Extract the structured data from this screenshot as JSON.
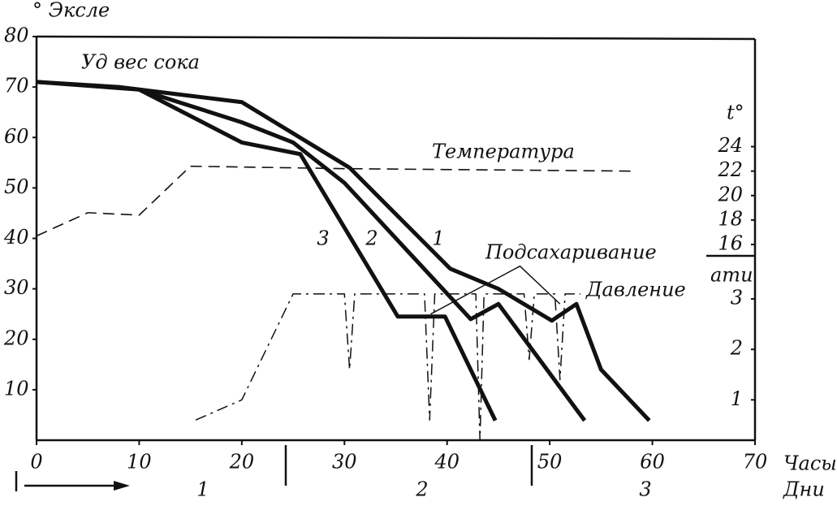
{
  "chart_data": {
    "type": "line",
    "y_axis_label": "° Эксле",
    "y2_axis_label": "t°",
    "y3_axis_label": "ати",
    "x_axis_label": "Часы",
    "x2_axis_label": "Дни",
    "day_labels": [
      "1",
      "2",
      "3"
    ],
    "annotations": [
      "Уд вес сока",
      "Температура",
      "Подсахаривание",
      "Давление"
    ],
    "xlim": [
      0,
      70
    ],
    "xticks": [
      0,
      10,
      20,
      30,
      40,
      50,
      60,
      70
    ],
    "ylim": [
      0,
      80
    ],
    "yticks": [
      10,
      20,
      30,
      40,
      50,
      60,
      70,
      80
    ],
    "y2lim": [
      0,
      33
    ],
    "y2ticks": [
      16,
      18,
      20,
      22,
      24
    ],
    "y3lim": [
      0.2,
      8.2
    ],
    "y3ticks": [
      1,
      2,
      3
    ],
    "series": [
      {
        "name": "1",
        "color": "#111111",
        "style": "solid",
        "width": 5,
        "x": [
          0,
          8,
          10,
          20,
          30.5,
          40.3,
          45,
          50.2,
          52.6,
          55,
          59.7
        ],
        "values": [
          71,
          70,
          69.5,
          67,
          54,
          34,
          30,
          23.7,
          27,
          14,
          3.9
        ]
      },
      {
        "name": "2",
        "color": "#111111",
        "style": "solid",
        "width": 5,
        "x": [
          0,
          10,
          20,
          25,
          30,
          42.3,
          45,
          53.4
        ],
        "values": [
          71,
          69.5,
          63,
          59,
          51,
          24,
          27,
          3.9
        ]
      },
      {
        "name": "3",
        "color": "#111111",
        "style": "solid",
        "width": 5,
        "x": [
          10,
          20,
          25.7,
          35.2,
          39.8,
          44.7
        ],
        "values": [
          69.5,
          59,
          56.7,
          24.5,
          24.5,
          3.9
        ]
      },
      {
        "name": "Подсахаривание",
        "color": "#111111",
        "style": "solid",
        "width": 1.5,
        "x": [
          38.4,
          47.1,
          51
        ],
        "values": [
          25,
          34.5,
          27
        ]
      },
      {
        "name": "Температура",
        "color": "#111111",
        "style": "dashed",
        "width": 1.6,
        "axis": "y2",
        "x": [
          0,
          5,
          10,
          15,
          30,
          58
        ],
        "values": [
          16.7,
          18.6,
          18.4,
          22.4,
          22.2,
          22.0
        ]
      },
      {
        "name": "Давление",
        "color": "#111111",
        "style": "dashdot",
        "width": 1.5,
        "axis": "y3",
        "x": [
          15.5,
          20,
          25,
          30,
          30.5,
          31,
          37.8,
          38.3,
          38.8,
          42.8,
          43.2,
          43.6,
          47.5,
          48,
          48.5,
          50.5,
          51,
          51.5,
          53
        ],
        "values": [
          0.6,
          1.0,
          3.1,
          3.1,
          1.6,
          3.1,
          3.1,
          0.6,
          3.1,
          3.1,
          0.2,
          3.1,
          3.1,
          1.8,
          3.1,
          3.1,
          1.4,
          3.1,
          3.1
        ]
      }
    ]
  }
}
